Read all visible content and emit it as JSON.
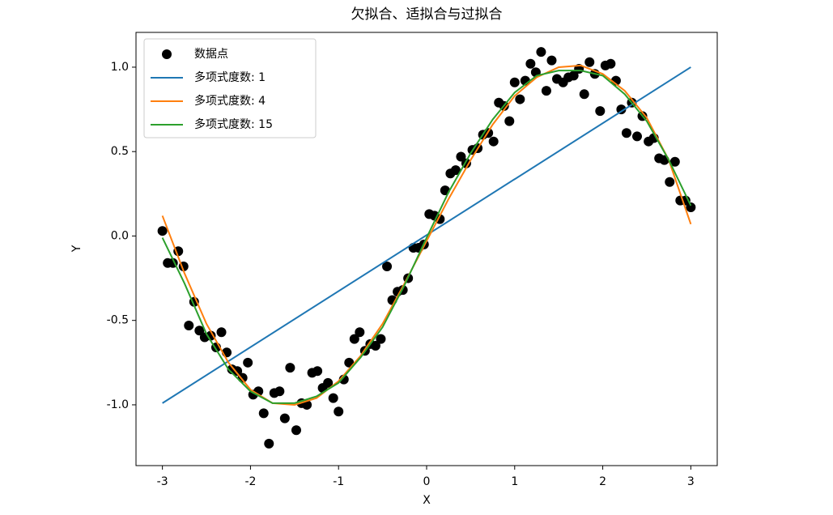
{
  "chart_data": {
    "type": "line",
    "title": "欠拟合、适拟合与过拟合",
    "xlabel": "X",
    "ylabel": "Y",
    "legend": "upper left",
    "xlim": [
      -3.3,
      3.3
    ],
    "ylim": [
      -1.36,
      1.206
    ],
    "xticks": [
      -3,
      -2,
      -1,
      0,
      1,
      2,
      3
    ],
    "yticks": [
      {
        "value": -1,
        "label": "-1.0"
      },
      -0.5,
      {
        "value": 0,
        "label": "0.0"
      },
      0.5,
      {
        "value": 1,
        "label": "1.0"
      }
    ],
    "scatter": {
      "name": "数据点",
      "color": "#000000",
      "x": [
        -3.0,
        -2.94,
        -2.88,
        -2.82,
        -2.76,
        -2.7,
        -2.64,
        -2.58,
        -2.52,
        -2.45,
        -2.39,
        -2.33,
        -2.27,
        -2.21,
        -2.15,
        -2.09,
        -2.03,
        -1.97,
        -1.91,
        -1.85,
        -1.79,
        -1.73,
        -1.67,
        -1.61,
        -1.55,
        -1.48,
        -1.42,
        -1.36,
        -1.3,
        -1.24,
        -1.18,
        -1.12,
        -1.06,
        -1.0,
        -0.94,
        -0.88,
        -0.82,
        -0.76,
        -0.7,
        -0.64,
        -0.58,
        -0.52,
        -0.45,
        -0.39,
        -0.33,
        -0.27,
        -0.21,
        -0.15,
        -0.09,
        -0.03,
        0.03,
        0.09,
        0.15,
        0.21,
        0.27,
        0.33,
        0.39,
        0.45,
        0.52,
        0.58,
        0.64,
        0.7,
        0.76,
        0.82,
        0.88,
        0.94,
        1.0,
        1.06,
        1.12,
        1.18,
        1.24,
        1.3,
        1.36,
        1.42,
        1.48,
        1.55,
        1.61,
        1.67,
        1.73,
        1.79,
        1.85,
        1.91,
        1.97,
        2.03,
        2.09,
        2.15,
        2.21,
        2.27,
        2.33,
        2.39,
        2.45,
        2.52,
        2.58,
        2.64,
        2.7,
        2.76,
        2.82,
        2.88,
        2.94,
        3.0
      ],
      "values": [
        0.03,
        -0.16,
        -0.16,
        -0.09,
        -0.18,
        -0.53,
        -0.39,
        -0.56,
        -0.6,
        -0.59,
        -0.66,
        -0.57,
        -0.69,
        -0.79,
        -0.8,
        -0.84,
        -0.75,
        -0.94,
        -0.92,
        -1.05,
        -1.23,
        -0.93,
        -0.92,
        -1.08,
        -0.78,
        -1.15,
        -0.99,
        -1.0,
        -0.81,
        -0.8,
        -0.9,
        -0.87,
        -0.96,
        -1.04,
        -0.85,
        -0.75,
        -0.61,
        -0.57,
        -0.68,
        -0.64,
        -0.65,
        -0.61,
        -0.18,
        -0.38,
        -0.33,
        -0.32,
        -0.25,
        -0.07,
        -0.07,
        -0.05,
        0.13,
        0.12,
        0.1,
        0.27,
        0.37,
        0.39,
        0.47,
        0.43,
        0.51,
        0.52,
        0.6,
        0.61,
        0.56,
        0.79,
        0.77,
        0.68,
        0.91,
        0.81,
        0.92,
        1.02,
        0.97,
        1.09,
        0.86,
        1.04,
        0.93,
        0.91,
        0.94,
        0.95,
        0.99,
        0.84,
        1.03,
        0.96,
        0.74,
        1.01,
        1.02,
        0.92,
        0.75,
        0.61,
        0.79,
        0.59,
        0.71,
        0.56,
        0.58,
        0.46,
        0.45,
        0.32,
        0.44,
        0.21,
        0.21,
        0.17
      ]
    },
    "series": [
      {
        "name": "多项式度数: 1",
        "color": "#1f77b4",
        "x": [
          -3,
          3
        ],
        "values": [
          -0.99,
          1.0
        ]
      },
      {
        "name": "多项式度数: 4",
        "color": "#ff7f0e",
        "x": [
          -3,
          -2.75,
          -2.5,
          -2.25,
          -2,
          -1.75,
          -1.5,
          -1.25,
          -1,
          -0.75,
          -0.5,
          -0.25,
          0,
          0.25,
          0.5,
          0.75,
          1,
          1.25,
          1.5,
          1.75,
          2,
          2.25,
          2.5,
          2.75,
          3
        ],
        "values": [
          0.12,
          -0.22,
          -0.52,
          -0.75,
          -0.91,
          -0.99,
          -1.0,
          -0.96,
          -0.86,
          -0.71,
          -0.52,
          -0.28,
          -0.03,
          0.22,
          0.45,
          0.66,
          0.83,
          0.94,
          1.0,
          1.01,
          0.96,
          0.86,
          0.7,
          0.45,
          0.07
        ]
      },
      {
        "name": "多项式度数: 15",
        "color": "#2ca02c",
        "x": [
          -3,
          -2.75,
          -2.5,
          -2.25,
          -2,
          -1.75,
          -1.5,
          -1.25,
          -1,
          -0.75,
          -0.5,
          -0.25,
          0,
          0.25,
          0.5,
          0.75,
          1,
          1.25,
          1.5,
          1.75,
          2,
          2.25,
          2.5,
          2.75,
          3
        ],
        "values": [
          -0.01,
          -0.28,
          -0.58,
          -0.79,
          -0.92,
          -0.99,
          -0.99,
          -0.95,
          -0.87,
          -0.72,
          -0.54,
          -0.29,
          -0.01,
          0.26,
          0.49,
          0.69,
          0.85,
          0.95,
          0.98,
          0.98,
          0.95,
          0.84,
          0.68,
          0.45,
          0.18
        ]
      }
    ]
  }
}
